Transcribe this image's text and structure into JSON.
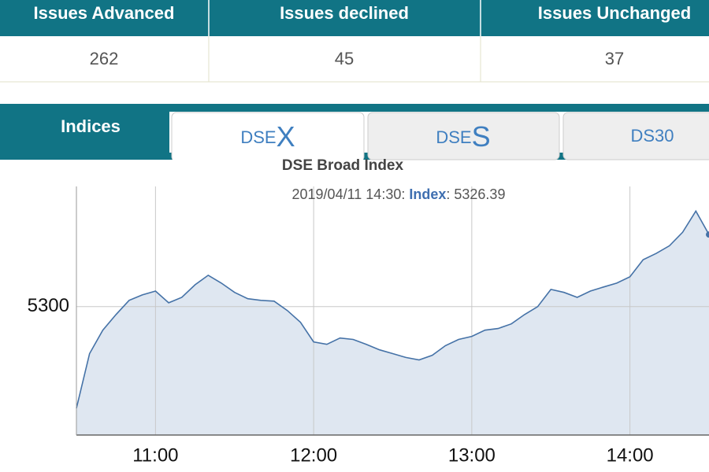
{
  "table": {
    "headers": [
      "Issues Advanced",
      "Issues declined",
      "Issues Unchanged"
    ],
    "values": [
      262,
      45,
      37
    ]
  },
  "tabs": {
    "section": "Indices",
    "items": [
      {
        "label": "DSE",
        "accent": "X"
      },
      {
        "label": "DSE",
        "accent": "S"
      },
      {
        "label": "DS30"
      }
    ]
  },
  "chart_data": {
    "type": "line",
    "title": "DSE Broad Index",
    "tooltip": {
      "date": "2019/04/11"
    },
    "x": [
      "10:30",
      "10:35",
      "10:40",
      "10:45",
      "10:50",
      "10:55",
      "11:00",
      "11:05",
      "11:10",
      "11:15",
      "11:20",
      "11:25",
      "11:30",
      "11:35",
      "11:40",
      "11:45",
      "11:50",
      "11:55",
      "12:00",
      "12:05",
      "12:10",
      "12:15",
      "12:20",
      "12:25",
      "12:30",
      "12:35",
      "12:40",
      "12:45",
      "12:50",
      "12:55",
      "13:00",
      "13:05",
      "13:10",
      "13:15",
      "13:20",
      "13:25",
      "13:30",
      "13:35",
      "13:40",
      "13:45",
      "13:50",
      "13:55",
      "14:00",
      "14:05",
      "14:10",
      "14:15",
      "14:20",
      "14:25",
      "14:30"
    ],
    "series": [
      {
        "name": "Index",
        "color": "#4572a7",
        "values": [
          5262.8,
          5282.8,
          5291.4,
          5297.1,
          5302.3,
          5304.3,
          5305.7,
          5301.4,
          5303.4,
          5308.0,
          5311.5,
          5308.6,
          5305.2,
          5302.9,
          5302.3,
          5302.0,
          5298.6,
          5294.3,
          5287.1,
          5286.2,
          5288.5,
          5288.0,
          5286.2,
          5284.2,
          5282.8,
          5281.4,
          5280.5,
          5282.2,
          5285.7,
          5288.0,
          5289.1,
          5291.4,
          5292.0,
          5293.7,
          5297.1,
          5300.0,
          5306.3,
          5305.2,
          5303.4,
          5305.7,
          5307.2,
          5308.6,
          5310.9,
          5317.2,
          5319.5,
          5322.3,
          5327.2,
          5335.0,
          5326.39
        ]
      }
    ],
    "xlim": [
      "10:30",
      "14:30"
    ],
    "xticks": [
      "11:00",
      "12:00",
      "13:00",
      "14:00"
    ],
    "ylim": [
      5253,
      5344
    ],
    "yticks": [
      5300
    ],
    "grid": true
  }
}
